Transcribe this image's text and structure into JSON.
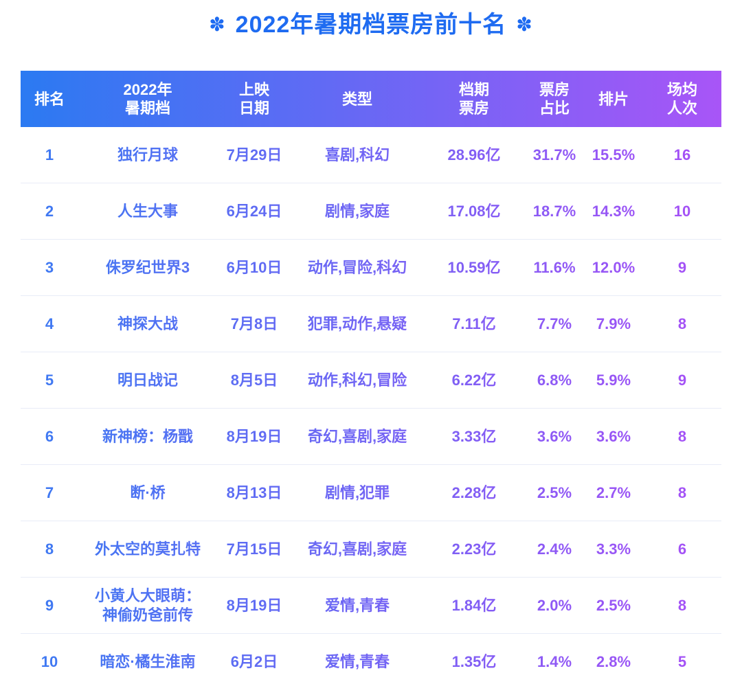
{
  "title": {
    "decoration_asterisk": "✽",
    "text": "2022年暑期档票房前十名"
  },
  "colors": {
    "background": "#ffffff",
    "title": "#1e6bf1",
    "header_gradient_start": "#2b7af2",
    "header_gradient_end": "#a855f7",
    "row_text_gradient_start": "#3b7af2",
    "row_text_gradient_end": "#a94ff6",
    "separator": "#e8ecf7",
    "header_text": "#ffffff"
  },
  "table": {
    "columns": [
      {
        "key": "rank",
        "label": "排名"
      },
      {
        "key": "title",
        "label": "2022年\n暑期档"
      },
      {
        "key": "date",
        "label": "上映\n日期"
      },
      {
        "key": "genres",
        "label": "类型"
      },
      {
        "key": "box_office",
        "label": "档期\n票房"
      },
      {
        "key": "share",
        "label": "票房\n占比"
      },
      {
        "key": "screening_ratio",
        "label": "排片"
      },
      {
        "key": "avg_attendance",
        "label": "场均\n人次"
      }
    ],
    "rows": [
      {
        "rank": "1",
        "title": "独行月球",
        "date": "7月29日",
        "genres": "喜剧,科幻",
        "box_office": "28.96亿",
        "share": "31.7%",
        "screening_ratio": "15.5%",
        "avg_attendance": "16"
      },
      {
        "rank": "2",
        "title": "人生大事",
        "date": "6月24日",
        "genres": "剧情,家庭",
        "box_office": "17.08亿",
        "share": "18.7%",
        "screening_ratio": "14.3%",
        "avg_attendance": "10"
      },
      {
        "rank": "3",
        "title": "侏罗纪世界3",
        "date": "6月10日",
        "genres": "动作,冒险,科幻",
        "box_office": "10.59亿",
        "share": "11.6%",
        "screening_ratio": "12.0%",
        "avg_attendance": "9"
      },
      {
        "rank": "4",
        "title": "神探大战",
        "date": "7月8日",
        "genres": "犯罪,动作,悬疑",
        "box_office": "7.11亿",
        "share": "7.7%",
        "screening_ratio": "7.9%",
        "avg_attendance": "8"
      },
      {
        "rank": "5",
        "title": "明日战记",
        "date": "8月5日",
        "genres": "动作,科幻,冒险",
        "box_office": "6.22亿",
        "share": "6.8%",
        "screening_ratio": "5.9%",
        "avg_attendance": "9"
      },
      {
        "rank": "6",
        "title": "新神榜：杨戬",
        "date": "8月19日",
        "genres": "奇幻,喜剧,家庭",
        "box_office": "3.33亿",
        "share": "3.6%",
        "screening_ratio": "3.6%",
        "avg_attendance": "8"
      },
      {
        "rank": "7",
        "title": "断·桥",
        "date": "8月13日",
        "genres": "剧情,犯罪",
        "box_office": "2.28亿",
        "share": "2.5%",
        "screening_ratio": "2.7%",
        "avg_attendance": "8"
      },
      {
        "rank": "8",
        "title": "外太空的莫扎特",
        "date": "7月15日",
        "genres": "奇幻,喜剧,家庭",
        "box_office": "2.23亿",
        "share": "2.4%",
        "screening_ratio": "3.3%",
        "avg_attendance": "6"
      },
      {
        "rank": "9",
        "title": "小黄人大眼萌：\n神偷奶爸前传",
        "date": "8月19日",
        "genres": "爱情,青春",
        "box_office": "1.84亿",
        "share": "2.0%",
        "screening_ratio": "2.5%",
        "avg_attendance": "8"
      },
      {
        "rank": "10",
        "title": "暗恋·橘生淮南",
        "date": "6月2日",
        "genres": "爱情,青春",
        "box_office": "1.35亿",
        "share": "1.4%",
        "screening_ratio": "2.8%",
        "avg_attendance": "5"
      }
    ]
  },
  "chart_data": {
    "type": "table",
    "title": "2022年暑期档票房前十名",
    "columns": [
      "排名",
      "2022年暑期档",
      "上映日期",
      "类型",
      "档期票房",
      "票房占比",
      "排片",
      "场均人次"
    ],
    "rows": [
      [
        "1",
        "独行月球",
        "7月29日",
        "喜剧,科幻",
        "28.96亿",
        "31.7%",
        "15.5%",
        "16"
      ],
      [
        "2",
        "人生大事",
        "6月24日",
        "剧情,家庭",
        "17.08亿",
        "18.7%",
        "14.3%",
        "10"
      ],
      [
        "3",
        "侏罗纪世界3",
        "6月10日",
        "动作,冒险,科幻",
        "10.59亿",
        "11.6%",
        "12.0%",
        "9"
      ],
      [
        "4",
        "神探大战",
        "7月8日",
        "犯罪,动作,悬疑",
        "7.11亿",
        "7.7%",
        "7.9%",
        "8"
      ],
      [
        "5",
        "明日战记",
        "8月5日",
        "动作,科幻,冒险",
        "6.22亿",
        "6.8%",
        "5.9%",
        "9"
      ],
      [
        "6",
        "新神榜：杨戬",
        "8月19日",
        "奇幻,喜剧,家庭",
        "3.33亿",
        "3.6%",
        "3.6%",
        "8"
      ],
      [
        "7",
        "断·桥",
        "8月13日",
        "剧情,犯罪",
        "2.28亿",
        "2.5%",
        "2.7%",
        "8"
      ],
      [
        "8",
        "外太空的莫扎特",
        "7月15日",
        "奇幻,喜剧,家庭",
        "2.23亿",
        "2.4%",
        "3.3%",
        "6"
      ],
      [
        "9",
        "小黄人大眼萌：神偷奶爸前传",
        "8月19日",
        "爱情,青春",
        "1.84亿",
        "2.0%",
        "2.5%",
        "8"
      ],
      [
        "10",
        "暗恋·橘生淮南",
        "6月2日",
        "爱情,青春",
        "1.35亿",
        "1.4%",
        "2.8%",
        "5"
      ]
    ]
  }
}
